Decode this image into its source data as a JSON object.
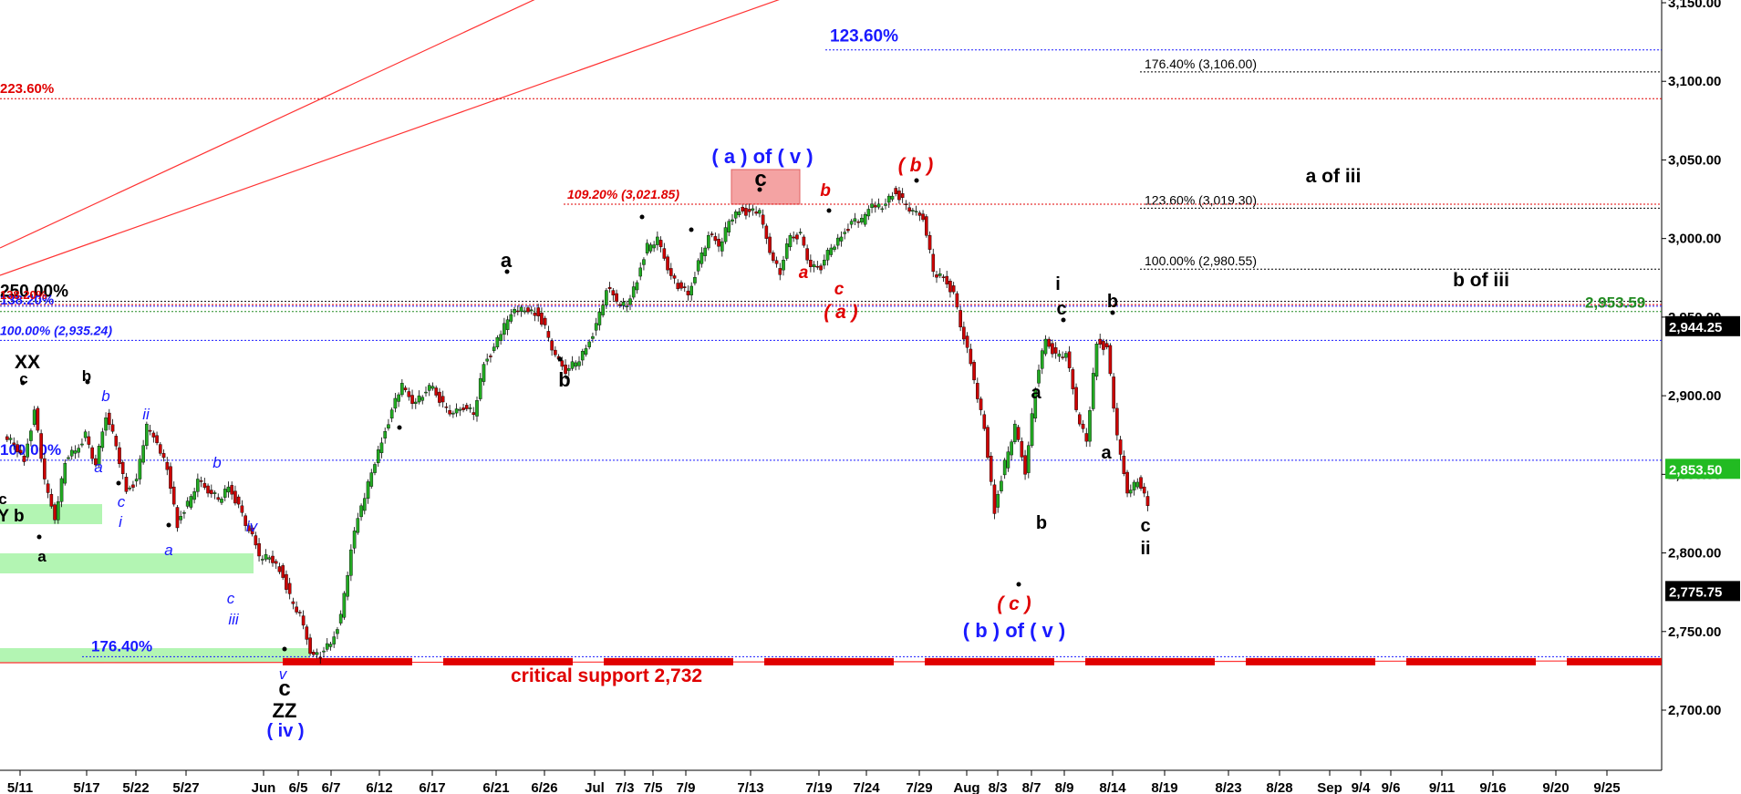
{
  "chart_data": {
    "type": "candlestick",
    "title": "",
    "xlabel": "",
    "ylabel": "",
    "ylim": [
      2660,
      3160
    ],
    "y_ticks": [
      "2,700.00",
      "2,750.00",
      "2,800.00",
      "2,850.00",
      "2,900.00",
      "2,950.00",
      "3,000.00",
      "3,050.00",
      "3,100.00",
      "3,150.00"
    ],
    "x_ticks": [
      "5/11",
      "5/17",
      "5/22",
      "5/27",
      "Jun",
      "6/5",
      "6/7",
      "6/12",
      "6/17",
      "6/21",
      "6/26",
      "Jul",
      "7/3",
      "7/5",
      "7/9",
      "7/13",
      "7/19",
      "7/24",
      "7/29",
      "Aug",
      "8/3",
      "8/7",
      "8/9",
      "8/14",
      "8/19",
      "8/23",
      "8/28",
      "Sep",
      "9/4",
      "9/6",
      "9/11",
      "9/16",
      "9/20",
      "9/25"
    ],
    "up_color": "#22aa22",
    "down_color": "#cc0000",
    "price_path": [
      2870,
      2858,
      2890,
      2845,
      2823,
      2858,
      2865,
      2876,
      2854,
      2888,
      2869,
      2839,
      2846,
      2880,
      2872,
      2854,
      2816,
      2832,
      2845,
      2840,
      2835,
      2842,
      2830,
      2812,
      2800,
      2798,
      2788,
      2773,
      2760,
      2738,
      2734,
      2742,
      2760,
      2800,
      2832,
      2852,
      2870,
      2890,
      2906,
      2897,
      2900,
      2906,
      2895,
      2887,
      2893,
      2889,
      2920,
      2930,
      2944,
      2957,
      2955,
      2951,
      2944,
      2924,
      2916,
      2922,
      2930,
      2945,
      2965,
      2962,
      2958,
      2972,
      2996,
      2999,
      2982,
      2969,
      2964,
      2985,
      3000,
      2997,
      3012,
      3017,
      3016,
      3016,
      2993,
      2978,
      3002,
      3003,
      2980,
      2982,
      2995,
      3001,
      3010,
      3011,
      3024,
      3020,
      3027,
      3025,
      3016,
      3014,
      2980,
      2975,
      2965,
      2934,
      2912,
      2880,
      2825,
      2858,
      2880,
      2852,
      2905,
      2936,
      2926,
      2925,
      2893,
      2872,
      2933,
      2930,
      2873,
      2840,
      2846,
      2830
    ],
    "price_labels": [
      {
        "value": "2,944.25",
        "bg": "#000000"
      },
      {
        "value": "2,853.50",
        "bg": "#22bb22"
      },
      {
        "value": "2,775.75",
        "bg": "#000000"
      }
    ],
    "levels": [
      {
        "label": "123.60%",
        "value": 3120,
        "color": "#1a1aff"
      },
      {
        "label": "176.40% (3,106.00)",
        "value": 3106,
        "color": "#000000"
      },
      {
        "label": "223.60%",
        "value": 3089,
        "color": "#e00000"
      },
      {
        "label": "123.60% (3,019.30)",
        "value": 3019.3,
        "color": "#000000"
      },
      {
        "label": "109.20% (3,021.85)",
        "value": 3021.85,
        "color": "#e00000"
      },
      {
        "label": "100.00% (2,980.55)",
        "value": 2980.55,
        "color": "#000000"
      },
      {
        "label": "250.00%",
        "value": 2960,
        "color": "#000000"
      },
      {
        "label": "138.20%",
        "value": 2957,
        "color": "#1a1aff"
      },
      {
        "label": "138.20%",
        "value": 2958,
        "color": "#e00000"
      },
      {
        "label": "2,953.59",
        "value": 2953.59,
        "color": "#228b22"
      },
      {
        "label": "100.00% (2,935.24)",
        "value": 2935.24,
        "color": "#1a1aff"
      },
      {
        "label": "100.00%",
        "value": 2859,
        "color": "#1a1aff"
      },
      {
        "label": "176.40%",
        "value": 2734,
        "color": "#1a1aff"
      }
    ],
    "support": {
      "label": "critical support 2,732",
      "value": 2732,
      "color": "#e00000"
    },
    "wave_labels": {
      "xx": "XX",
      "c_top_left": "c",
      "b1": "b",
      "b2": "b",
      "ii1": "ii",
      "a1": "a",
      "c1": "c",
      "i1": "i",
      "yb": "Y b",
      "c_left": "c",
      "a_bottom": "a",
      "a2": "a",
      "b3": "b",
      "iv": "iv",
      "c2": "c",
      "iii": "iii",
      "v": "v",
      "c_big": "c",
      "zz": "ZZ",
      "iv_paren": "( iv )",
      "a_top": "a",
      "b_mid": "b",
      "a_of_v": "( a )  of  ( v )",
      "c_top": "c",
      "b_red": "b",
      "a_red": "a",
      "c_red": "c",
      "a_red_paren": "( a )",
      "b_red_paren": "( b )",
      "i_right": "i",
      "c_right": "c",
      "b_right": "b",
      "a_right1": "a",
      "b_right1": "b",
      "a_right2": "a",
      "c_right2": "c",
      "ii_right": "ii",
      "c_red_paren": "( c )",
      "b_of_v": "( b )  of  ( v )",
      "a_of_iii": "a of iii",
      "b_of_iii": "b of iii"
    }
  }
}
